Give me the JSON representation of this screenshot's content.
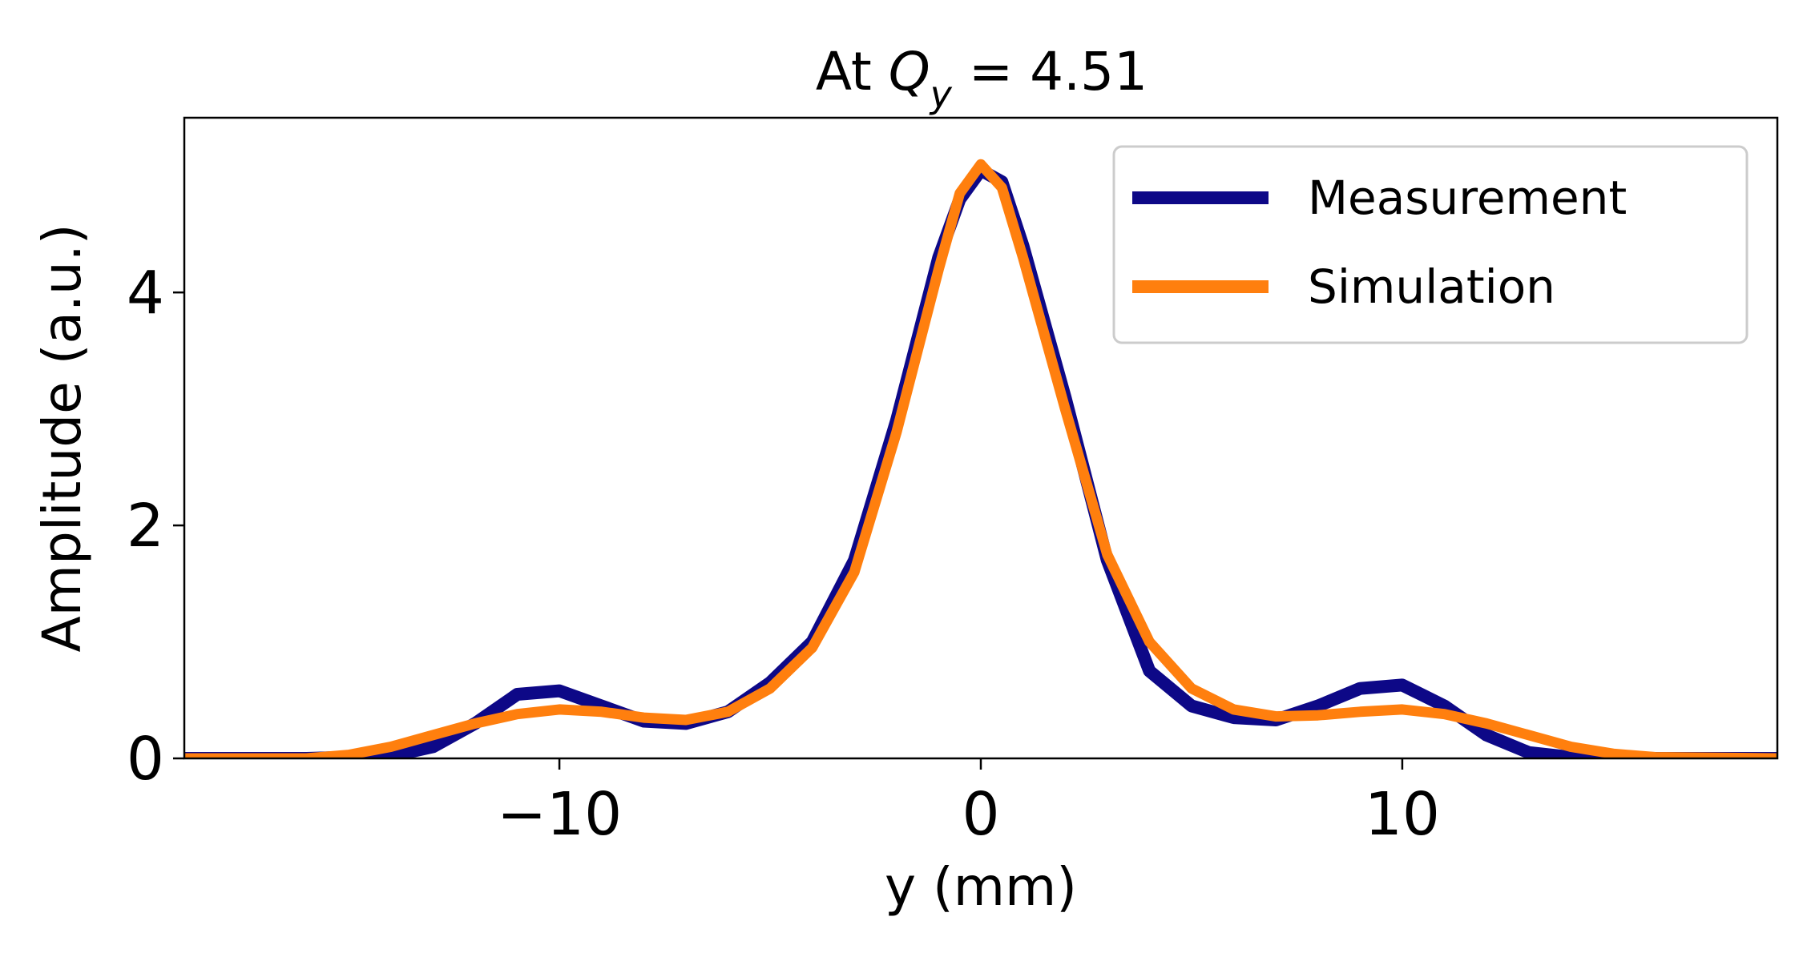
{
  "chart_data": {
    "type": "line",
    "title": {
      "prefix": "At ",
      "symbol": "Q",
      "subscript": "y",
      "suffix": " = 4.51"
    },
    "xlabel": "y (mm)",
    "ylabel": "Amplitude (a.u.)",
    "xlim": [
      -18.9,
      18.9
    ],
    "ylim": [
      0,
      5.5
    ],
    "xticks": [
      -10,
      0,
      10
    ],
    "xtick_labels": [
      "−10",
      "0",
      "10"
    ],
    "yticks": [
      0,
      2,
      4
    ],
    "ytick_labels": [
      "0",
      "2",
      "4"
    ],
    "grid": false,
    "legend_position": "top-right",
    "series": [
      {
        "name": "Measurement",
        "color": "#0d0887",
        "x": [
          -18.9,
          -16,
          -14,
          -13,
          -12,
          -11,
          -10,
          -9,
          -8,
          -7,
          -6,
          -5,
          -4,
          -3,
          -2,
          -1,
          -0.5,
          0,
          0.5,
          1,
          2,
          3,
          4,
          5,
          6,
          7,
          8,
          9,
          10,
          11,
          12,
          13,
          14,
          16,
          18.9
        ],
        "y": [
          0,
          0,
          0.02,
          0.1,
          0.3,
          0.55,
          0.58,
          0.45,
          0.32,
          0.3,
          0.4,
          0.65,
          1.0,
          1.7,
          2.9,
          4.3,
          4.8,
          5.05,
          4.95,
          4.4,
          3.1,
          1.7,
          0.75,
          0.45,
          0.35,
          0.33,
          0.45,
          0.6,
          0.63,
          0.45,
          0.2,
          0.05,
          0.01,
          0,
          0
        ]
      },
      {
        "name": "Simulation",
        "color": "#ff7f0e",
        "x": [
          -18.9,
          -16,
          -15,
          -14,
          -13,
          -12,
          -11,
          -10,
          -9,
          -8,
          -7,
          -6,
          -5,
          -4,
          -3,
          -2,
          -1,
          -0.5,
          0,
          0.5,
          1,
          2,
          3,
          4,
          5,
          6,
          7,
          8,
          9,
          10,
          11,
          12,
          13,
          14,
          15,
          16,
          18.9
        ],
        "y": [
          0,
          0,
          0.03,
          0.1,
          0.2,
          0.3,
          0.38,
          0.42,
          0.4,
          0.35,
          0.33,
          0.4,
          0.6,
          0.95,
          1.6,
          2.8,
          4.2,
          4.85,
          5.1,
          4.9,
          4.3,
          3.0,
          1.75,
          1.0,
          0.6,
          0.42,
          0.36,
          0.37,
          0.4,
          0.42,
          0.38,
          0.3,
          0.2,
          0.1,
          0.04,
          0.01,
          0
        ]
      }
    ]
  }
}
